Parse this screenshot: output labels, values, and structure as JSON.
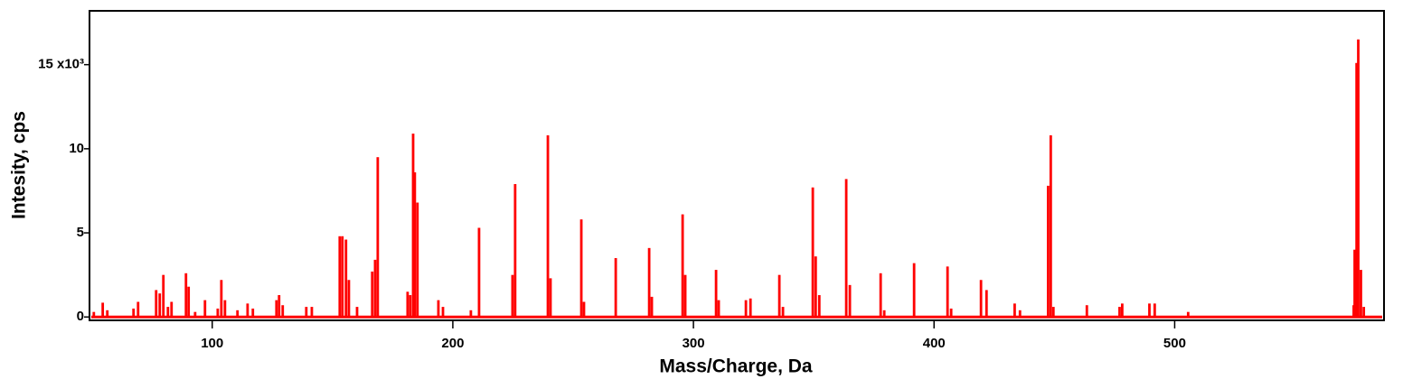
{
  "chart_data": {
    "type": "bar",
    "x_label": "Mass/Charge, Da",
    "y_label": "Intesity, cps",
    "color": "#ff0000",
    "xlim": [
      49,
      587
    ],
    "ylim": [
      -0.2,
      18.2
    ],
    "xticks": [
      100,
      200,
      300,
      400,
      500
    ],
    "yticks": [
      0,
      5,
      10,
      {
        "value": 15,
        "label": "15 x10³"
      }
    ],
    "x": [
      50.8,
      54.5,
      56.4,
      67.3,
      69.2,
      76.7,
      78.2,
      79.7,
      81.6,
      83.1,
      89.1,
      90.2,
      92.9,
      97.0,
      102.3,
      103.8,
      105.3,
      110.5,
      114.7,
      116.9,
      126.7,
      127.8,
      129.3,
      139.1,
      141.4,
      153.0,
      154.1,
      155.6,
      156.8,
      160.2,
      166.5,
      167.7,
      168.8,
      181.2,
      182.3,
      183.5,
      184.2,
      185.3,
      194.0,
      195.9,
      207.5,
      210.9,
      224.8,
      225.9,
      239.5,
      240.6,
      253.4,
      254.5,
      267.7,
      281.6,
      282.7,
      295.5,
      296.6,
      309.4,
      310.5,
      321.8,
      323.7,
      335.7,
      337.2,
      349.6,
      350.8,
      352.3,
      363.5,
      365.0,
      377.8,
      379.3,
      391.7,
      405.6,
      407.1,
      419.5,
      421.8,
      433.5,
      435.7,
      447.4,
      448.5,
      449.6,
      463.5,
      477.1,
      478.2,
      489.5,
      491.7,
      505.6,
      574.4,
      574.8,
      575.6,
      576.3,
      577.4,
      578.6
    ],
    "values": [
      0.3,
      0.85,
      0.4,
      0.5,
      0.9,
      1.6,
      1.4,
      2.5,
      0.6,
      0.9,
      2.6,
      1.8,
      0.3,
      1.0,
      0.5,
      2.2,
      1.0,
      0.4,
      0.8,
      0.5,
      1.0,
      1.3,
      0.7,
      0.6,
      0.6,
      4.8,
      4.8,
      4.6,
      2.2,
      0.6,
      2.7,
      3.4,
      9.5,
      1.5,
      1.3,
      10.9,
      8.6,
      6.8,
      1.0,
      0.6,
      0.4,
      5.3,
      2.5,
      7.9,
      10.8,
      2.3,
      5.8,
      0.9,
      3.5,
      4.1,
      1.2,
      6.1,
      2.5,
      2.8,
      1.0,
      1.0,
      1.1,
      2.5,
      0.6,
      7.7,
      3.6,
      1.3,
      8.2,
      1.9,
      2.6,
      0.4,
      3.2,
      3.0,
      0.5,
      2.2,
      1.6,
      0.8,
      0.4,
      7.8,
      10.8,
      0.6,
      0.7,
      0.6,
      0.8,
      0.8,
      0.8,
      0.3,
      0.7,
      4.0,
      15.1,
      16.5,
      2.8,
      0.6
    ]
  }
}
